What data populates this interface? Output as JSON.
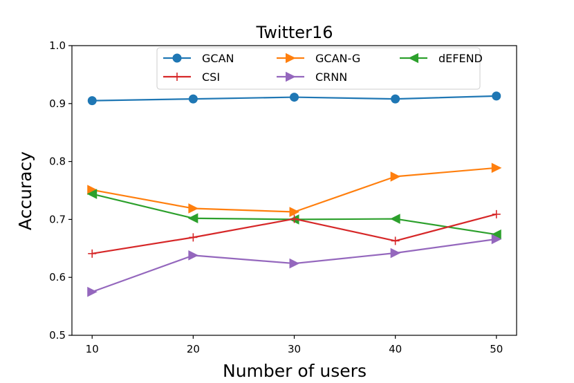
{
  "chart_data": {
    "type": "line",
    "title": "Twitter16",
    "xlabel": "Number of users",
    "ylabel": "Accuracy",
    "x": [
      10,
      20,
      30,
      40,
      50
    ],
    "xticks": [
      "10",
      "20",
      "30",
      "40",
      "50"
    ],
    "yticks": [
      "0.5",
      "0.6",
      "0.7",
      "0.8",
      "0.9",
      "1.0"
    ],
    "xlim": [
      8,
      52
    ],
    "ylim": [
      0.5,
      1.0
    ],
    "legend_position": "top",
    "series": [
      {
        "name": "GCAN",
        "color": "#1f77b4",
        "marker": "circle",
        "values": [
          0.905,
          0.908,
          0.911,
          0.908,
          0.913
        ]
      },
      {
        "name": "GCAN-G",
        "color": "#ff7f0e",
        "marker": "triangle-right",
        "values": [
          0.751,
          0.719,
          0.713,
          0.774,
          0.789
        ]
      },
      {
        "name": "dEFEND",
        "color": "#2ca02c",
        "marker": "triangle-left",
        "values": [
          0.744,
          0.702,
          0.7,
          0.701,
          0.674
        ]
      },
      {
        "name": "CSI",
        "color": "#d62728",
        "marker": "plus",
        "values": [
          0.641,
          0.669,
          0.701,
          0.663,
          0.709
        ]
      },
      {
        "name": "CRNN",
        "color": "#9467bd",
        "marker": "triangle-right",
        "values": [
          0.575,
          0.638,
          0.624,
          0.642,
          0.666
        ]
      }
    ]
  }
}
